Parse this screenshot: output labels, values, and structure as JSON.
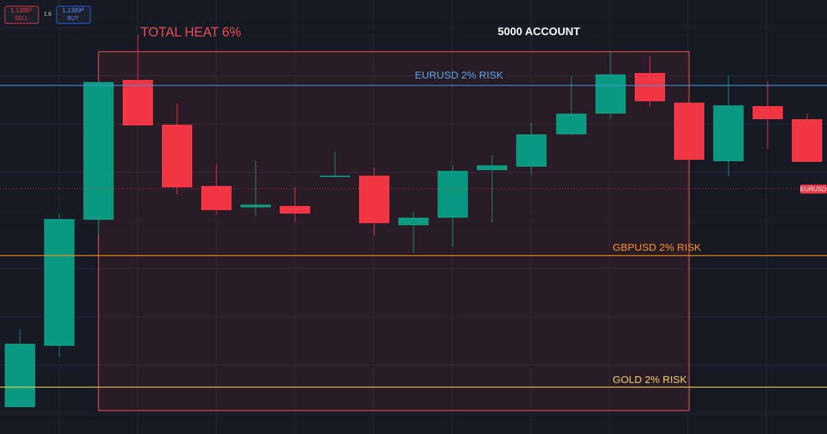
{
  "toolbar": {
    "sell_price": "1.1388",
    "sell_price_tail": "2",
    "sell_label": "SELL",
    "spread": "1.6",
    "buy_price": "1.1389",
    "buy_price_tail": "8",
    "buy_label": "BUY"
  },
  "annotations": {
    "total_heat": "TOTAL HEAT 6%",
    "account": "5000 ACCOUNT",
    "eurusd_risk": "EURUSD 2% RISK",
    "gbpusd_risk": "GBPUSD 2% RISK",
    "gold_risk": "GOLD 2% RISK"
  },
  "price_tag": "EURUSD"
}
